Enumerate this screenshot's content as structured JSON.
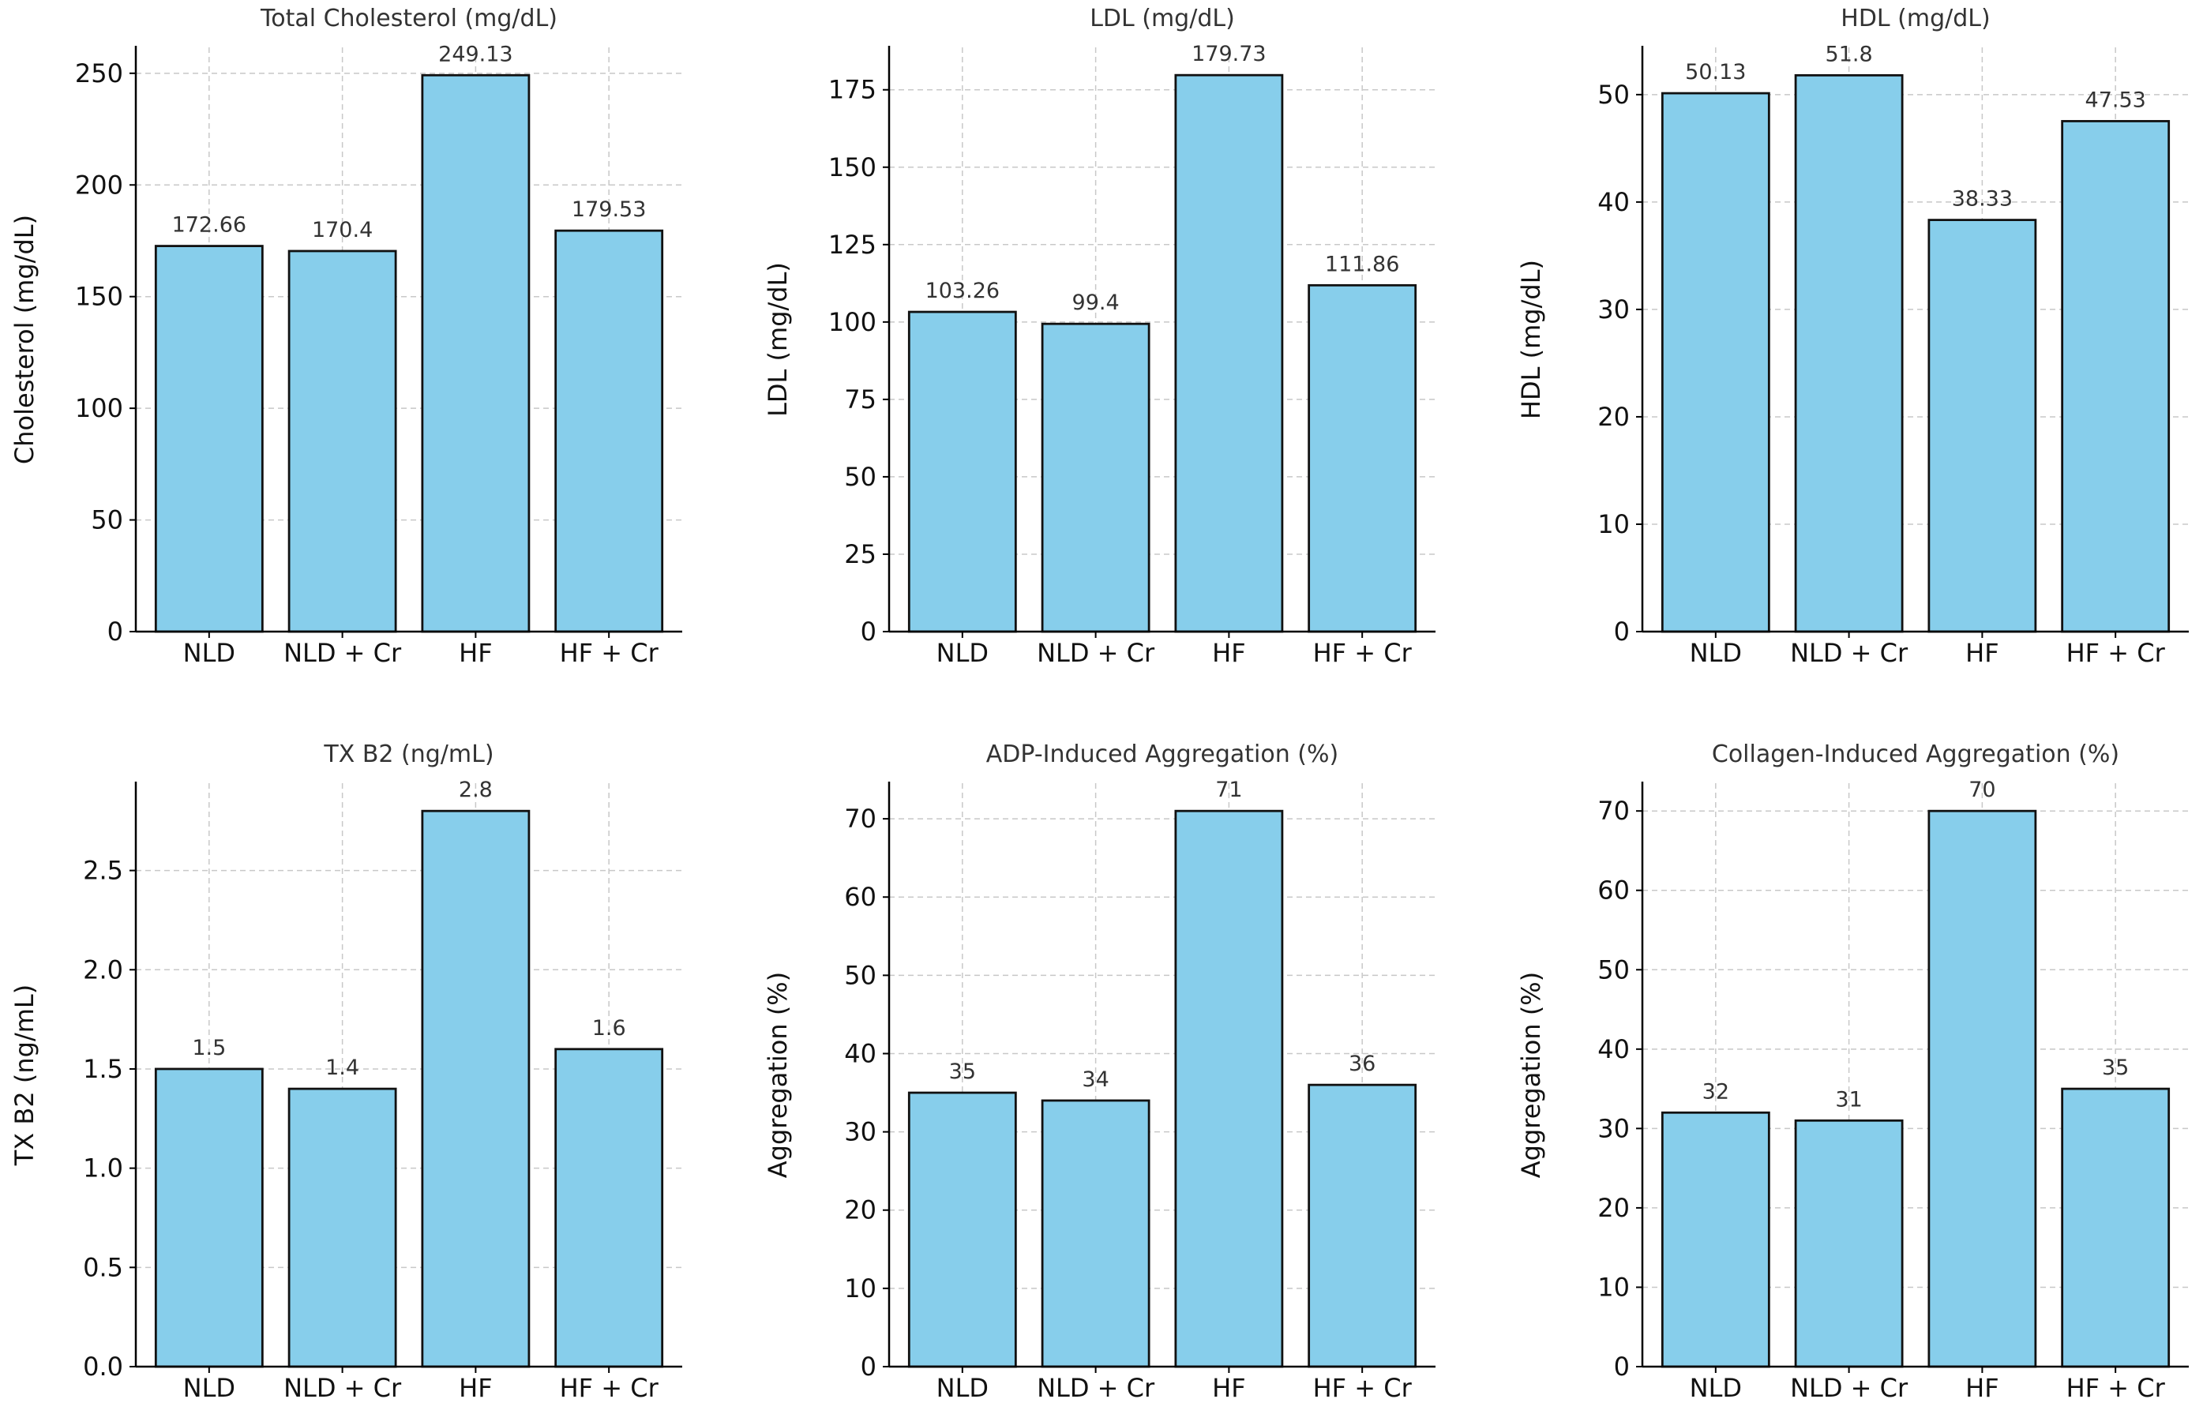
{
  "chart_data": [
    {
      "type": "bar",
      "title": "Total Cholesterol (mg/dL)",
      "ylabel": "Cholesterol (mg/dL)",
      "categories": [
        "NLD",
        "NLD + Cr",
        "HF",
        "HF + Cr"
      ],
      "values": [
        172.66,
        170.4,
        249.13,
        179.53
      ],
      "value_labels": [
        "172.66",
        "170.4",
        "249.13",
        "179.53"
      ],
      "ylim": [
        0,
        261.6
      ],
      "yticks": [
        0,
        50,
        100,
        150,
        200,
        250
      ],
      "ytick_labels": [
        "0",
        "50",
        "100",
        "150",
        "200",
        "250"
      ],
      "grid": true
    },
    {
      "type": "bar",
      "title": "LDL (mg/dL)",
      "ylabel": "LDL (mg/dL)",
      "categories": [
        "NLD",
        "NLD + Cr",
        "HF",
        "HF + Cr"
      ],
      "values": [
        103.26,
        99.4,
        179.73,
        111.86
      ],
      "value_labels": [
        "103.26",
        "99.4",
        "179.73",
        "111.86"
      ],
      "ylim": [
        0,
        188.7
      ],
      "yticks": [
        0,
        25,
        50,
        75,
        100,
        125,
        150,
        175
      ],
      "ytick_labels": [
        "0",
        "25",
        "50",
        "75",
        "100",
        "125",
        "150",
        "175"
      ],
      "grid": true
    },
    {
      "type": "bar",
      "title": "HDL (mg/dL)",
      "ylabel": "HDL (mg/dL)",
      "categories": [
        "NLD",
        "NLD + Cr",
        "HF",
        "HF + Cr"
      ],
      "values": [
        50.13,
        51.8,
        38.33,
        47.53
      ],
      "value_labels": [
        "50.13",
        "51.8",
        "38.33",
        "47.53"
      ],
      "ylim": [
        0,
        54.4
      ],
      "yticks": [
        0,
        10,
        20,
        30,
        40,
        50
      ],
      "ytick_labels": [
        "0",
        "10",
        "20",
        "30",
        "40",
        "50"
      ],
      "grid": true
    },
    {
      "type": "bar",
      "title": "TX B2 (ng/mL)",
      "ylabel": "TX B2 (ng/mL)",
      "categories": [
        "NLD",
        "NLD + Cr",
        "HF",
        "HF + Cr"
      ],
      "values": [
        1.5,
        1.4,
        2.8,
        1.6
      ],
      "value_labels": [
        "1.5",
        "1.4",
        "2.8",
        "1.6"
      ],
      "ylim": [
        0,
        2.94
      ],
      "yticks": [
        0,
        0.5,
        1.0,
        1.5,
        2.0,
        2.5
      ],
      "ytick_labels": [
        "0.0",
        "0.5",
        "1.0",
        "1.5",
        "2.0",
        "2.5"
      ],
      "grid": true
    },
    {
      "type": "bar",
      "title": "ADP-Induced Aggregation (%)",
      "ylabel": "Aggregation (%)",
      "categories": [
        "NLD",
        "NLD + Cr",
        "HF",
        "HF + Cr"
      ],
      "values": [
        35,
        34,
        71,
        36
      ],
      "value_labels": [
        "35",
        "34",
        "71",
        "36"
      ],
      "ylim": [
        0,
        74.55
      ],
      "yticks": [
        0,
        10,
        20,
        30,
        40,
        50,
        60,
        70
      ],
      "ytick_labels": [
        "0",
        "10",
        "20",
        "30",
        "40",
        "50",
        "60",
        "70"
      ],
      "grid": true
    },
    {
      "type": "bar",
      "title": "Collagen-Induced Aggregation (%)",
      "ylabel": "Aggregation (%)",
      "categories": [
        "NLD",
        "NLD + Cr",
        "HF",
        "HF + Cr"
      ],
      "values": [
        32,
        31,
        70,
        35
      ],
      "value_labels": [
        "32",
        "31",
        "70",
        "35"
      ],
      "ylim": [
        0,
        73.5
      ],
      "yticks": [
        0,
        10,
        20,
        30,
        40,
        50,
        60,
        70
      ],
      "ytick_labels": [
        "0",
        "10",
        "20",
        "30",
        "40",
        "50",
        "60",
        "70"
      ],
      "grid": true
    }
  ],
  "colors": {
    "bar_fill": "#87ceeb",
    "bar_edge": "#111111",
    "grid": "#c8c8c8"
  }
}
